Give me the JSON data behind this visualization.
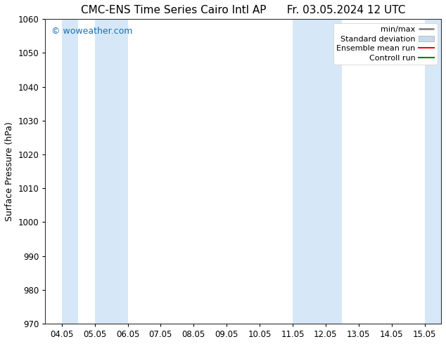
{
  "title": "CMC-ENS Time Series Cairo Intl AP",
  "title_right": "Fr. 03.05.2024 12 UTC",
  "ylabel": "Surface Pressure (hPa)",
  "x_ticks": [
    "04.05",
    "05.05",
    "06.05",
    "07.05",
    "08.05",
    "09.05",
    "10.05",
    "11.05",
    "12.05",
    "13.05",
    "14.05",
    "15.05"
  ],
  "ylim": [
    970,
    1060
  ],
  "y_ticks": [
    970,
    980,
    990,
    1000,
    1010,
    1020,
    1030,
    1040,
    1050,
    1060
  ],
  "watermark": "© woweather.com",
  "watermark_color": "#1a6eb5",
  "bg_color": "#ffffff",
  "plot_bg_color": "#ffffff",
  "shaded_band_color": "#d6e8f7",
  "legend_labels": [
    "min/max",
    "Standard deviation",
    "Ensemble mean run",
    "Controll run"
  ],
  "legend_line_color_minmax": "#888888",
  "legend_fill_color_std": "#c8daea",
  "legend_line_color_ens": "#ff0000",
  "legend_line_color_ctrl": "#008000",
  "shaded_ranges": [
    [
      0.0,
      0.5
    ],
    [
      1.0,
      2.0
    ],
    [
      7.0,
      8.5
    ],
    [
      11.0,
      11.5
    ]
  ],
  "title_fontsize": 11,
  "tick_label_fontsize": 8.5,
  "axis_label_fontsize": 9,
  "legend_fontsize": 8
}
